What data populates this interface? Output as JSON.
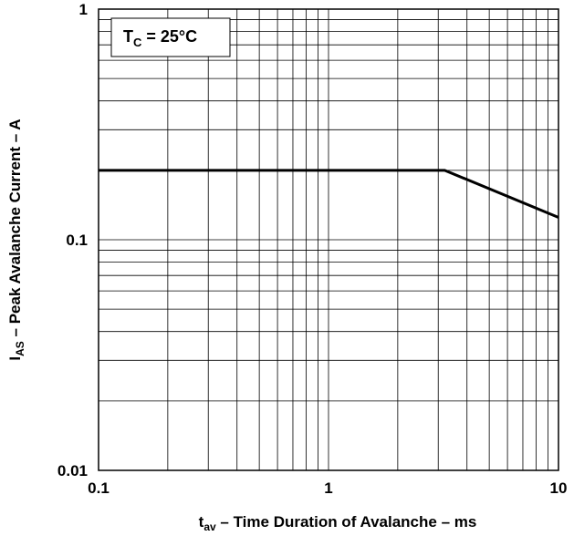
{
  "chart_data": {
    "type": "line",
    "x_scale": "log",
    "y_scale": "log",
    "xlim": [
      0.1,
      10
    ],
    "ylim": [
      0.01,
      1
    ],
    "grid": true,
    "x_ticks": [
      "0.1",
      "1",
      "10"
    ],
    "y_ticks": [
      "0.01",
      "0.1",
      "1"
    ],
    "xlabel": {
      "main": "t",
      "sub": "av",
      "rest": " – Time Duration of Avalanche – ms"
    },
    "ylabel": {
      "main": "I",
      "sub": "AS",
      "rest": " – Peak Avalanche Current – A"
    },
    "annotation": {
      "main": "T",
      "sub": "C",
      "rest": " = 25°C"
    },
    "series": [
      {
        "x": [
          0.1,
          3.2,
          10
        ],
        "y": [
          0.2,
          0.2,
          0.125
        ]
      }
    ]
  }
}
